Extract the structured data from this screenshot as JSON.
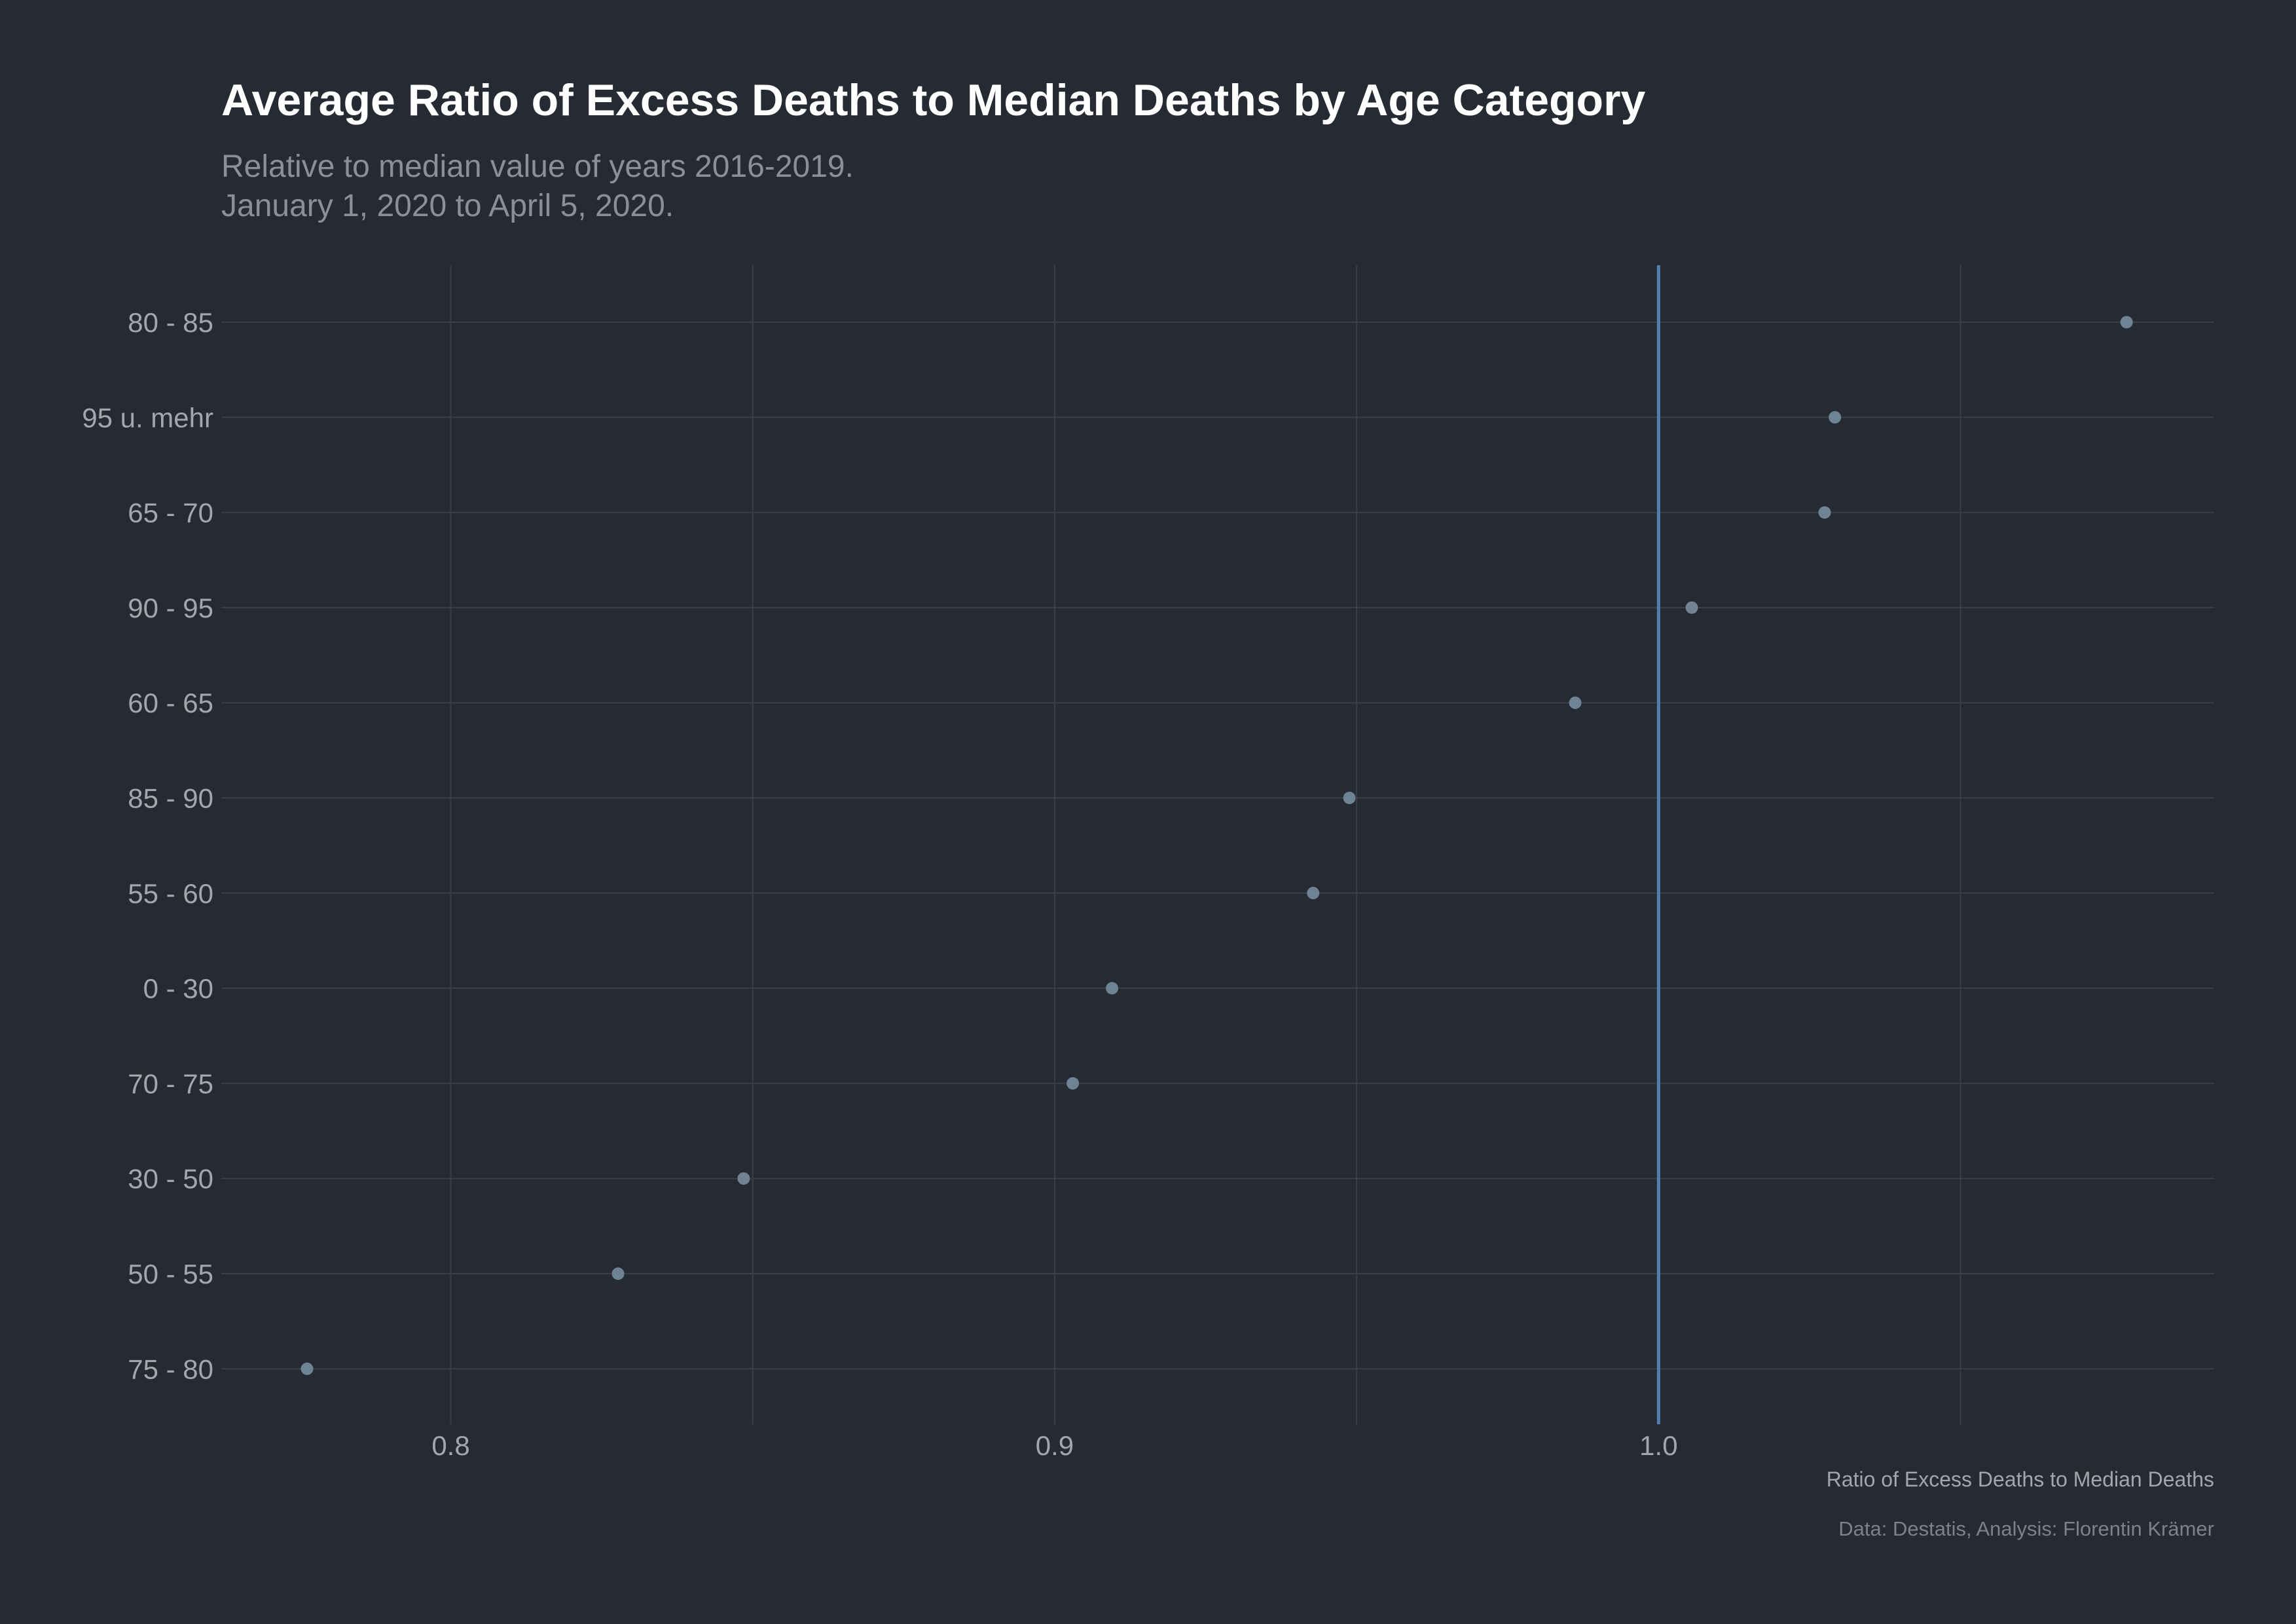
{
  "title": "Average Ratio of Excess Deaths to Median Deaths by Age Category",
  "subtitle_line1": "Relative to median value of years 2016-2019.",
  "subtitle_line2": "January 1, 2020 to April 5, 2020.",
  "caption": "Data: Destatis, Analysis: Florentin Krämer",
  "colors": {
    "background": "#252a33",
    "grid": "#3a3f48",
    "point": "#6e8494",
    "reference_line": "#4f7fae",
    "title": "#ffffff",
    "text": "#a3a7ac"
  },
  "chart_data": {
    "type": "scatter",
    "title": "Average Ratio of Excess Deaths to Median Deaths by Age Category",
    "xlabel": "Ratio of Excess Deaths to Median Deaths",
    "ylabel": "",
    "xlim": [
      0.762,
      1.092
    ],
    "x_ticks": [
      0.8,
      0.9,
      1.0
    ],
    "x_tick_labels": [
      "0.8",
      "0.9",
      "1.0"
    ],
    "x_minor_gridlines": [
      0.85,
      0.95,
      1.05
    ],
    "reference_line_x": 1.0,
    "grid": true,
    "categories": [
      "80 - 85",
      "95 u. mehr",
      "65 - 70",
      "90 - 95",
      "60 - 65",
      "85 - 90",
      "55 - 60",
      "0 - 30",
      "70 - 75",
      "30 - 50",
      "50 - 55",
      "75 - 80"
    ],
    "values": [
      1.0775,
      1.0292,
      1.0275,
      1.0055,
      0.9862,
      0.9488,
      0.9428,
      0.9095,
      0.903,
      0.8485,
      0.8277,
      0.7762
    ]
  }
}
